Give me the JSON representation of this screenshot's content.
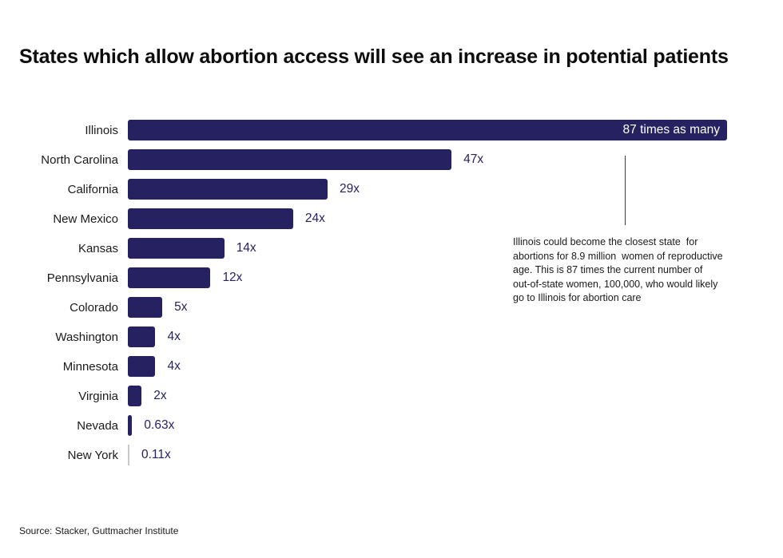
{
  "title": "States which allow abortion access will see an increase in potential patients",
  "source": "Source: Stacker, Guttmacher Institute",
  "colors": {
    "bar": "#262262",
    "bar_muted": "#c9c9c9",
    "value_label": "#262262",
    "inside_label": "#ffffff",
    "text": "#1a1a1a"
  },
  "annotation": {
    "lines": [
      "Illinois could become the closest state  for",
      "abortions for 8.9 million  women of reproductive",
      "age. This is 87 times the current number of",
      "out-of-state women, 100,000, who would likely",
      "go to Illinois for abortion care"
    ]
  },
  "chart_data": {
    "type": "bar",
    "orientation": "horizontal",
    "title": "States which allow abortion access will see an increase in potential patients",
    "xlabel": "",
    "ylabel": "",
    "xlim": [
      0,
      87
    ],
    "grid": false,
    "legend": false,
    "categories": [
      "Illinois",
      "North Carolina",
      "California",
      "New Mexico",
      "Kansas",
      "Pennsylvania",
      "Colorado",
      "Washington",
      "Minnesota",
      "Virginia",
      "Nevada",
      "New York"
    ],
    "values": [
      87,
      47,
      29,
      24,
      14,
      12,
      5,
      4,
      4,
      2,
      0.63,
      0.11
    ],
    "bars": [
      {
        "state": "Illinois",
        "value": 87,
        "label": "87 times as many",
        "label_inside": true,
        "muted": false
      },
      {
        "state": "North Carolina",
        "value": 47,
        "label": "47x",
        "label_inside": false,
        "muted": false
      },
      {
        "state": "California",
        "value": 29,
        "label": "29x",
        "label_inside": false,
        "muted": false
      },
      {
        "state": "New Mexico",
        "value": 24,
        "label": "24x",
        "label_inside": false,
        "muted": false
      },
      {
        "state": "Kansas",
        "value": 14,
        "label": "14x",
        "label_inside": false,
        "muted": false
      },
      {
        "state": "Pennsylvania",
        "value": 12,
        "label": "12x",
        "label_inside": false,
        "muted": false
      },
      {
        "state": "Colorado",
        "value": 5,
        "label": "5x",
        "label_inside": false,
        "muted": false
      },
      {
        "state": "Washington",
        "value": 4,
        "label": "4x",
        "label_inside": false,
        "muted": false
      },
      {
        "state": "Minnesota",
        "value": 4,
        "label": "4x",
        "label_inside": false,
        "muted": false
      },
      {
        "state": "Virginia",
        "value": 2,
        "label": "2x",
        "label_inside": false,
        "muted": false
      },
      {
        "state": "Nevada",
        "value": 0.63,
        "label": "0.63x",
        "label_inside": false,
        "muted": false
      },
      {
        "state": "New York",
        "value": 0.11,
        "label": "0.11x",
        "label_inside": false,
        "muted": true
      }
    ]
  }
}
